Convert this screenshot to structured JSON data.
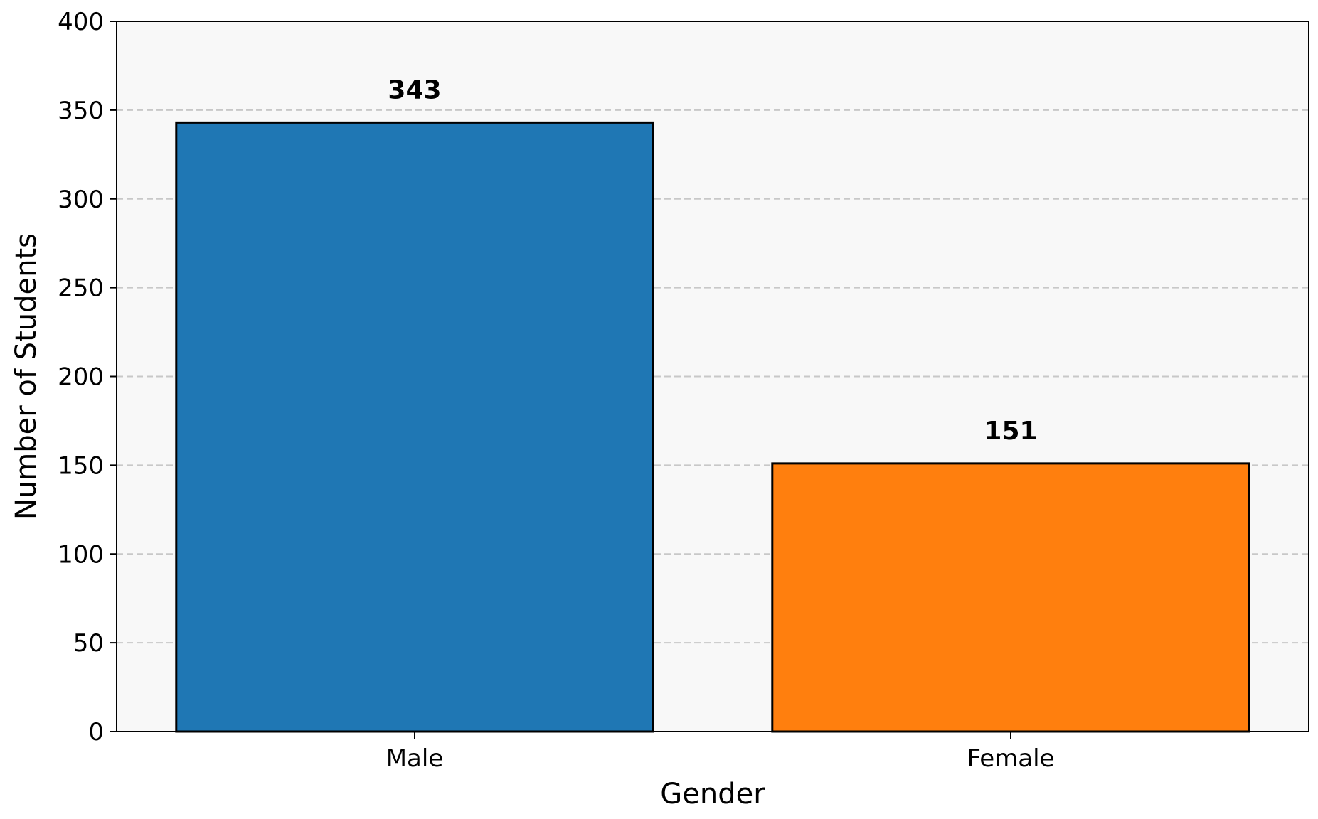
{
  "chart_data": {
    "type": "bar",
    "categories": [
      "Male",
      "Female"
    ],
    "values": [
      343,
      151
    ],
    "data_labels": [
      "343",
      "151"
    ],
    "colors": [
      "#1f77b4",
      "#ff7f0e"
    ],
    "edge_color": "#000000",
    "background": "#f8f8f8",
    "title": "",
    "xlabel": "Gender",
    "ylabel": "Number of Students",
    "ylim": [
      0,
      400
    ],
    "yticks": [
      0,
      50,
      100,
      150,
      200,
      250,
      300,
      350,
      400
    ],
    "ytick_labels": [
      "0",
      "50",
      "100",
      "150",
      "200",
      "250",
      "300",
      "350",
      "400"
    ],
    "grid": {
      "axis": "y",
      "style": "dashed"
    },
    "legend": "none"
  }
}
